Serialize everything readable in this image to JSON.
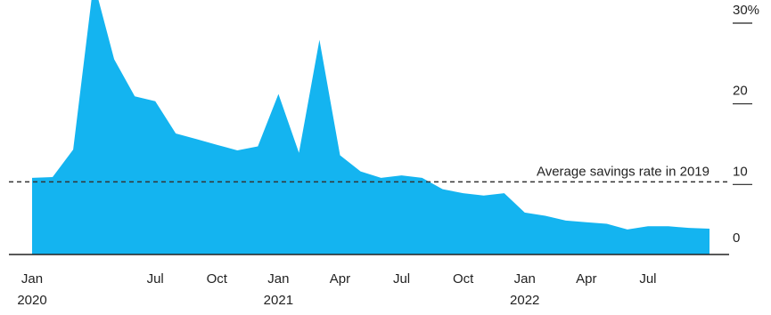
{
  "chart_data": {
    "type": "area",
    "title": "",
    "xlabel": "",
    "ylabel": "",
    "y_unit_suffix": "%",
    "ylim": [
      0,
      30
    ],
    "yticks": [
      {
        "value": 0,
        "label": "0"
      },
      {
        "value": 10,
        "label": "10"
      },
      {
        "value": 20,
        "label": "20"
      },
      {
        "value": 30,
        "label": "30%"
      }
    ],
    "grid": false,
    "y_axis_side": "right",
    "area_color": "#14b4f0",
    "x_month_index_range": [
      0,
      33
    ],
    "xticks": [
      {
        "month_index": 0,
        "label": "Jan",
        "year_label": "2020"
      },
      {
        "month_index": 6,
        "label": "Jul",
        "year_label": ""
      },
      {
        "month_index": 9,
        "label": "Oct",
        "year_label": ""
      },
      {
        "month_index": 12,
        "label": "Jan",
        "year_label": "2021"
      },
      {
        "month_index": 15,
        "label": "Apr",
        "year_label": ""
      },
      {
        "month_index": 18,
        "label": "Jul",
        "year_label": ""
      },
      {
        "month_index": 21,
        "label": "Oct",
        "year_label": ""
      },
      {
        "month_index": 24,
        "label": "Jan",
        "year_label": "2022"
      },
      {
        "month_index": 27,
        "label": "Apr",
        "year_label": ""
      },
      {
        "month_index": 30,
        "label": "Jul",
        "year_label": ""
      }
    ],
    "series": [
      {
        "x": [
          "2020-01",
          "2020-02",
          "2020-03",
          "2020-04",
          "2020-05",
          "2020-06",
          "2020-07",
          "2020-08",
          "2020-09",
          "2020-10",
          "2020-11",
          "2020-12",
          "2021-01",
          "2021-02",
          "2021-03",
          "2021-04",
          "2021-05",
          "2021-06",
          "2021-07",
          "2021-08",
          "2021-09",
          "2021-10",
          "2021-11",
          "2021-12",
          "2022-01",
          "2022-02",
          "2022-03",
          "2022-04",
          "2022-05",
          "2022-06",
          "2022-07",
          "2022-08",
          "2022-09",
          "2022-10"
        ],
        "values": [
          9.5,
          9.6,
          13.0,
          33.8,
          24.2,
          19.6,
          19.0,
          15.0,
          14.3,
          13.6,
          12.9,
          13.4,
          19.9,
          12.6,
          26.6,
          12.3,
          10.3,
          9.5,
          9.8,
          9.5,
          8.1,
          7.6,
          7.3,
          7.6,
          5.2,
          4.8,
          4.2,
          4.0,
          3.8,
          3.1,
          3.5,
          3.5,
          3.3,
          3.2
        ]
      }
    ],
    "reference_line": {
      "value": 9.0,
      "style": "dashed",
      "label": "Average savings rate in 2019"
    }
  }
}
